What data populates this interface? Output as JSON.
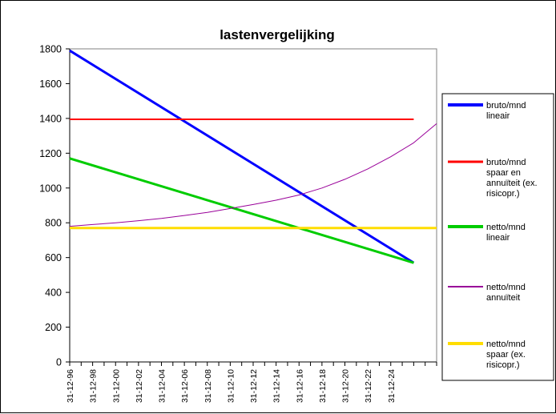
{
  "chart_data": {
    "type": "line",
    "title": "lastenvergelijking",
    "ylim": [
      0,
      1800
    ],
    "yticks": [
      0,
      200,
      400,
      600,
      800,
      1000,
      1200,
      1400,
      1600,
      1800
    ],
    "xticks": [
      "31-12-96",
      "31-12-98",
      "31-12-00",
      "31-12-02",
      "31-12-04",
      "31-12-06",
      "31-12-08",
      "31-12-10",
      "31-12-12",
      "31-12-14",
      "31-12-16",
      "31-12-18",
      "31-12-20",
      "31-12-22",
      "31-12-24"
    ],
    "grid": false,
    "legend": "right",
    "series": [
      {
        "name_lines": [
          "bruto/mnd",
          "lineair"
        ],
        "color": "#0000ff",
        "width": 3,
        "points": [
          [
            0,
            1790
          ],
          [
            30,
            570
          ]
        ]
      },
      {
        "name_lines": [
          "bruto/mnd",
          "spaar en",
          "annuïteit (ex.",
          "risicopr.)"
        ],
        "color": "#ff0000",
        "width": 2,
        "points": [
          [
            0,
            1395
          ],
          [
            30,
            1395
          ]
        ]
      },
      {
        "name_lines": [
          "netto/mnd",
          "lineair"
        ],
        "color": "#00cc00",
        "width": 3,
        "points": [
          [
            0,
            1170
          ],
          [
            30,
            570
          ]
        ]
      },
      {
        "name_lines": [
          "netto/mnd",
          "annuïteit"
        ],
        "color": "#990099",
        "width": 1,
        "points": [
          [
            0,
            780
          ],
          [
            2,
            790
          ],
          [
            4,
            800
          ],
          [
            6,
            812
          ],
          [
            8,
            825
          ],
          [
            10,
            842
          ],
          [
            12,
            860
          ],
          [
            14,
            882
          ],
          [
            16,
            905
          ],
          [
            18,
            930
          ],
          [
            20,
            960
          ],
          [
            22,
            1000
          ],
          [
            24,
            1050
          ],
          [
            26,
            1110
          ],
          [
            28,
            1180
          ],
          [
            30,
            1260
          ],
          [
            32,
            1370
          ]
        ]
      },
      {
        "name_lines": [
          "netto/mnd",
          "spaar (ex.",
          "risicopr.)"
        ],
        "color": "#ffdd00",
        "width": 3,
        "points": [
          [
            0,
            770
          ],
          [
            32,
            770
          ]
        ]
      }
    ]
  }
}
